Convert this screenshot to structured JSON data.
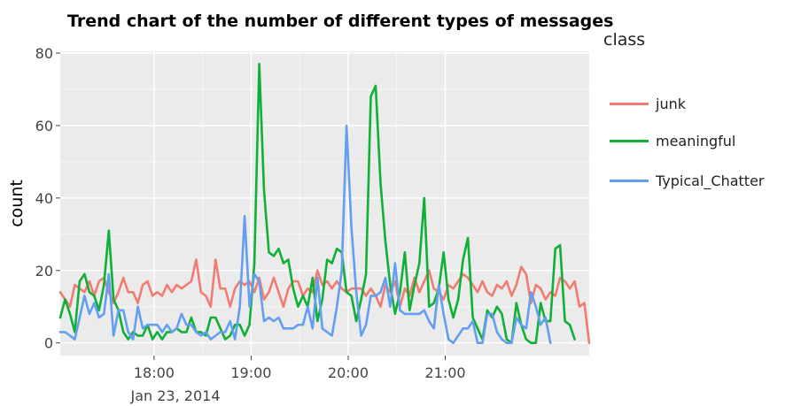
{
  "chart_data": {
    "type": "line",
    "title": "Trend chart of the number of different types of messages",
    "xlabel": "",
    "ylabel": "count",
    "x_start": "17:02",
    "x_interval_minutes": 3,
    "x_ticks": [
      "18:00",
      "19:00",
      "20:00",
      "21:00"
    ],
    "x_date_label": "Jan 23, 2014",
    "y_ticks": [
      0,
      20,
      40,
      60,
      80
    ],
    "ylim": [
      -3.5,
      80.5
    ],
    "grid": true,
    "legend_title": "class",
    "legend_position": "right",
    "series": [
      {
        "name": "junk",
        "color": "#f07c72",
        "values": [
          14,
          12,
          10,
          16,
          15,
          14,
          17,
          13,
          17,
          18,
          14,
          11,
          14,
          18,
          14,
          14,
          11,
          16,
          17,
          13,
          14,
          13,
          16,
          14,
          16,
          15,
          16,
          17,
          23,
          14,
          13,
          10,
          23,
          15,
          15,
          10,
          15,
          17,
          16,
          17,
          14,
          18,
          12,
          14,
          18,
          14,
          10,
          15,
          17,
          17,
          13,
          15,
          14,
          20,
          16,
          17,
          15,
          17,
          15,
          14,
          15,
          15,
          15,
          13,
          15,
          13,
          10,
          16,
          14,
          17,
          10,
          15,
          13,
          18,
          14,
          17,
          20,
          15,
          14,
          12,
          16,
          15,
          17,
          19,
          18,
          16,
          14,
          17,
          14,
          13,
          16,
          15,
          17,
          13,
          16,
          21,
          19,
          11,
          16,
          15,
          12,
          14,
          13,
          18,
          17,
          15,
          17,
          10,
          11,
          0
        ]
      },
      {
        "name": "meaningful",
        "color": "#0fb036",
        "values": [
          7,
          12,
          8,
          3,
          17,
          19,
          14,
          13,
          9,
          16,
          31,
          12,
          9,
          3,
          1,
          3,
          2,
          2,
          5,
          1,
          3,
          1,
          3,
          3,
          4,
          3,
          3,
          7,
          3,
          3,
          2,
          7,
          7,
          4,
          1,
          2,
          5,
          5,
          2,
          5,
          22,
          77,
          42,
          25,
          24,
          26,
          22,
          23,
          15,
          10,
          13,
          10,
          18,
          6,
          12,
          23,
          22,
          26,
          25,
          14,
          13,
          6,
          12,
          19,
          68,
          71,
          44,
          28,
          16,
          8,
          14,
          25,
          9,
          16,
          22,
          40,
          10,
          11,
          15,
          25,
          12,
          7,
          12,
          23,
          29,
          7,
          4,
          1,
          9,
          7,
          10,
          8,
          1,
          0,
          11,
          5,
          1,
          0,
          0,
          11,
          6,
          6,
          26,
          27,
          6,
          5,
          1
        ]
      },
      {
        "name": "Typical_Chatter",
        "color": "#649ef0",
        "values": [
          3,
          3,
          2,
          1,
          7,
          13,
          8,
          11,
          7,
          8,
          19,
          2,
          9,
          9,
          3,
          1,
          10,
          4,
          5,
          5,
          5,
          3,
          5,
          3,
          4,
          8,
          5,
          5,
          3,
          2,
          3,
          1,
          2,
          3,
          3,
          6,
          1,
          10,
          35,
          10,
          19,
          17,
          6,
          7,
          6,
          7,
          4,
          4,
          4,
          5,
          5,
          10,
          4,
          18,
          4,
          3,
          2,
          10,
          20,
          60,
          32,
          14,
          2,
          5,
          13,
          13,
          14,
          18,
          10,
          22,
          9,
          8,
          8,
          8,
          8,
          9,
          6,
          4,
          16,
          8,
          1,
          0,
          2,
          4,
          4,
          6,
          0,
          0,
          8,
          8,
          3,
          1,
          0,
          0,
          7,
          5,
          4,
          14,
          10,
          5,
          7,
          0
        ]
      }
    ]
  }
}
